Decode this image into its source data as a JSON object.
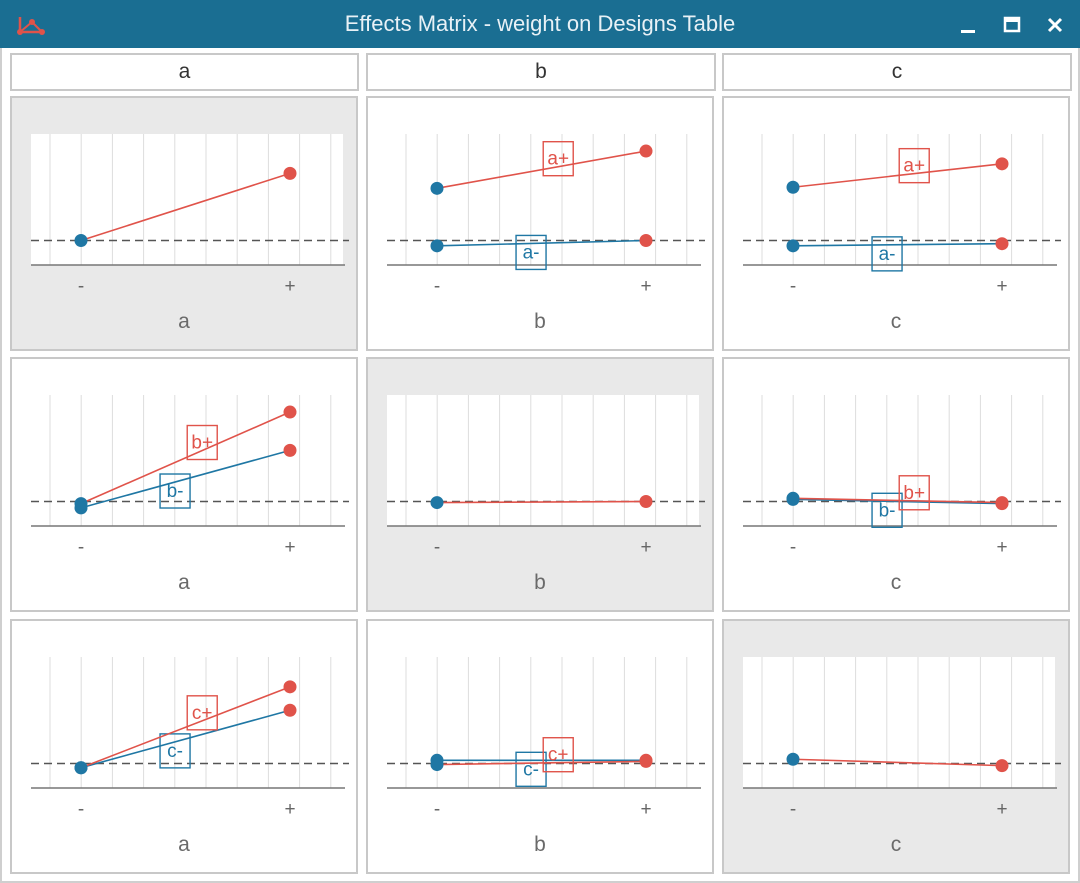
{
  "window": {
    "title": "Effects Matrix - weight on Designs Table",
    "controls": {
      "minimize": "_",
      "maximize": "□",
      "close": "✕"
    },
    "app_icon": "network-graph-icon"
  },
  "colors": {
    "plus": "#e0534a",
    "minus": "#1f77a4",
    "midline": "#555555",
    "axis": "#777777",
    "grid": "#dddddd",
    "plot_bg": "#ffffff",
    "diag_bg": "#e9e9e9"
  },
  "columns": [
    {
      "label": "a"
    },
    {
      "label": "b"
    },
    {
      "label": "c"
    }
  ],
  "chart_data": [
    {
      "type": "line",
      "row": 0,
      "col": 0,
      "diagonal": true,
      "xlabel": "a",
      "categories": [
        "-",
        "+"
      ],
      "y_mid": 0.0,
      "ylim": [
        -0.23,
        1.0
      ],
      "series": [
        {
          "name": "a",
          "values": [
            0.0,
            0.63
          ]
        }
      ]
    },
    {
      "type": "line",
      "row": 0,
      "col": 1,
      "diagonal": false,
      "xlabel": "b",
      "categories": [
        "-",
        "+"
      ],
      "y_mid": 0.0,
      "ylim": [
        -0.23,
        1.0
      ],
      "series": [
        {
          "name": "a+",
          "values": [
            0.49,
            0.84
          ],
          "label_pos": 0.58
        },
        {
          "name": "a-",
          "values": [
            -0.05,
            0.0
          ],
          "label_pos": 0.45
        }
      ]
    },
    {
      "type": "line",
      "row": 0,
      "col": 2,
      "diagonal": false,
      "xlabel": "c",
      "categories": [
        "-",
        "+"
      ],
      "y_mid": 0.0,
      "ylim": [
        -0.23,
        1.0
      ],
      "series": [
        {
          "name": "a+",
          "values": [
            0.5,
            0.72
          ],
          "label_pos": 0.58
        },
        {
          "name": "a-",
          "values": [
            -0.05,
            -0.03
          ],
          "label_pos": 0.45
        }
      ]
    },
    {
      "type": "line",
      "row": 1,
      "col": 0,
      "diagonal": false,
      "xlabel": "a",
      "categories": [
        "-",
        "+"
      ],
      "y_mid": 0.0,
      "ylim": [
        -0.23,
        1.0
      ],
      "series": [
        {
          "name": "b+",
          "values": [
            -0.02,
            0.84
          ],
          "label_pos": 0.58
        },
        {
          "name": "b-",
          "values": [
            -0.06,
            0.48
          ],
          "label_pos": 0.45
        }
      ]
    },
    {
      "type": "line",
      "row": 1,
      "col": 1,
      "diagonal": true,
      "xlabel": "b",
      "categories": [
        "-",
        "+"
      ],
      "y_mid": 0.0,
      "ylim": [
        -0.23,
        1.0
      ],
      "series": [
        {
          "name": "b",
          "values": [
            -0.01,
            0.0
          ]
        }
      ]
    },
    {
      "type": "line",
      "row": 1,
      "col": 2,
      "diagonal": false,
      "xlabel": "c",
      "categories": [
        "-",
        "+"
      ],
      "y_mid": 0.0,
      "ylim": [
        -0.23,
        1.0
      ],
      "series": [
        {
          "name": "b+",
          "values": [
            0.03,
            -0.01
          ],
          "label_pos": 0.58
        },
        {
          "name": "b-",
          "values": [
            0.02,
            -0.02
          ],
          "label_pos": 0.45
        }
      ]
    },
    {
      "type": "line",
      "row": 2,
      "col": 0,
      "diagonal": false,
      "xlabel": "a",
      "categories": [
        "-",
        "+"
      ],
      "y_mid": 0.0,
      "ylim": [
        -0.23,
        1.0
      ],
      "series": [
        {
          "name": "c+",
          "values": [
            -0.04,
            0.72
          ],
          "label_pos": 0.58
        },
        {
          "name": "c-",
          "values": [
            -0.04,
            0.5
          ],
          "label_pos": 0.45
        }
      ]
    },
    {
      "type": "line",
      "row": 2,
      "col": 1,
      "diagonal": false,
      "xlabel": "b",
      "categories": [
        "-",
        "+"
      ],
      "y_mid": 0.0,
      "ylim": [
        -0.23,
        1.0
      ],
      "series": [
        {
          "name": "c+",
          "values": [
            -0.01,
            0.02
          ],
          "label_pos": 0.58
        },
        {
          "name": "c-",
          "values": [
            0.03,
            0.03
          ],
          "label_pos": 0.45
        }
      ]
    },
    {
      "type": "line",
      "row": 2,
      "col": 2,
      "diagonal": true,
      "xlabel": "c",
      "categories": [
        "-",
        "+"
      ],
      "y_mid": 0.0,
      "ylim": [
        -0.23,
        1.0
      ],
      "series": [
        {
          "name": "c",
          "values": [
            0.04,
            -0.02
          ]
        }
      ]
    }
  ]
}
